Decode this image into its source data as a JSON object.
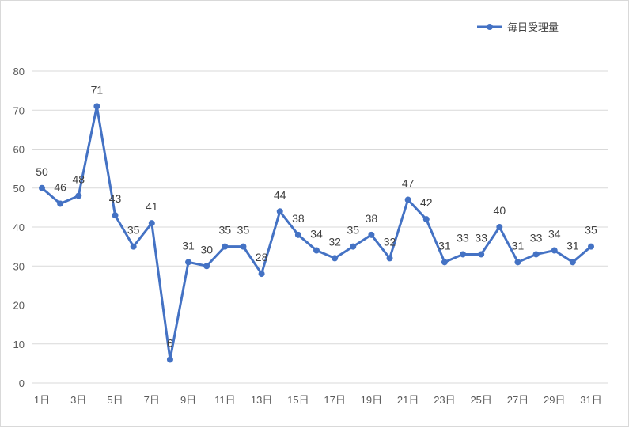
{
  "chart_data": {
    "type": "line",
    "title": "",
    "xlabel": "",
    "ylabel": "",
    "categories": [
      "1日",
      "2日",
      "3日",
      "4日",
      "5日",
      "6日",
      "7日",
      "8日",
      "9日",
      "10日",
      "11日",
      "12日",
      "13日",
      "14日",
      "15日",
      "16日",
      "17日",
      "18日",
      "19日",
      "20日",
      "21日",
      "22日",
      "23日",
      "24日",
      "25日",
      "26日",
      "27日",
      "28日",
      "29日",
      "30日",
      "31日"
    ],
    "x_tick_labels": [
      "1日",
      "3日",
      "5日",
      "7日",
      "9日",
      "11日",
      "13日",
      "15日",
      "17日",
      "19日",
      "21日",
      "23日",
      "25日",
      "27日",
      "29日",
      "31日"
    ],
    "y_ticks": [
      0,
      10,
      20,
      30,
      40,
      50,
      60,
      70,
      80
    ],
    "ylim": [
      0,
      80
    ],
    "grid": "horizontal",
    "legend_position": "top-right",
    "series": [
      {
        "name": "毎日受理量",
        "color": "#4472c4",
        "values": [
          50,
          46,
          48,
          71,
          43,
          35,
          41,
          6,
          31,
          30,
          35,
          35,
          28,
          44,
          38,
          34,
          32,
          35,
          38,
          32,
          47,
          42,
          31,
          33,
          33,
          40,
          31,
          33,
          34,
          31,
          35
        ]
      }
    ]
  }
}
